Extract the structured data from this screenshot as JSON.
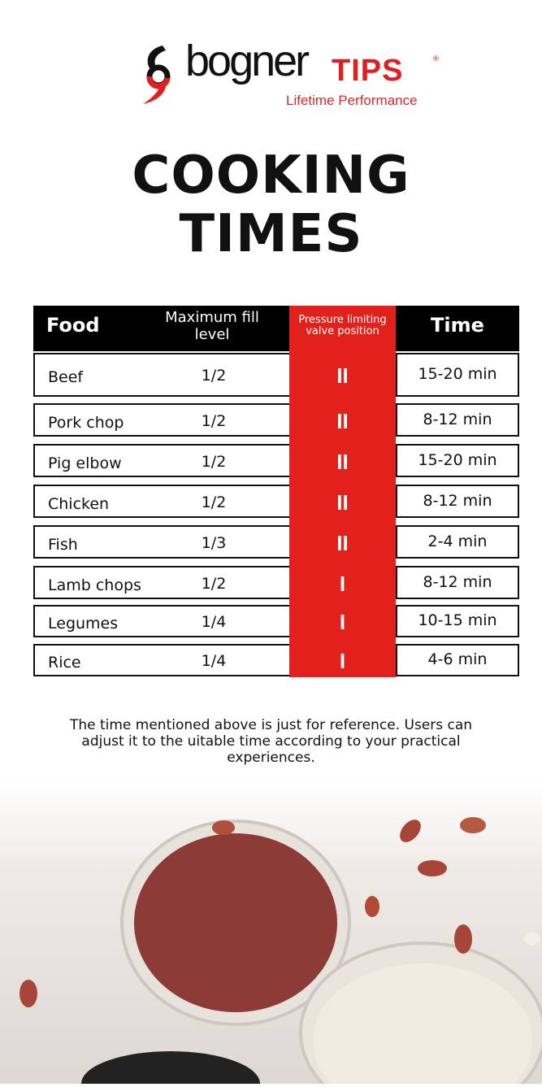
{
  "logo": {
    "brand": "bogner",
    "accent": "TIPS",
    "tagline": "Lifetime Performance",
    "registered": "®"
  },
  "title": {
    "line1": "COOKING",
    "line2": "TIMES"
  },
  "table": {
    "headers": {
      "food": "Food",
      "fill": "Maximum fill level",
      "valve": "Pressure limiting valve position",
      "time": "Time"
    },
    "rows": [
      {
        "food": "Beef",
        "fill": "1/2",
        "valve": "II",
        "time": "15-20 min"
      },
      {
        "food": "Pork chop",
        "fill": "1/2",
        "valve": "II",
        "time": "8-12 min"
      },
      {
        "food": "Pig elbow",
        "fill": "1/2",
        "valve": "II",
        "time": "15-20 min"
      },
      {
        "food": "Chicken",
        "fill": "1/2",
        "valve": "II",
        "time": "8-12 min"
      },
      {
        "food": "Fish",
        "fill": "1/3",
        "valve": "II",
        "time": "2-4 min"
      },
      {
        "food": "Lamb chops",
        "fill": "1/2",
        "valve": "I",
        "time": "8-12 min"
      },
      {
        "food": "Legumes",
        "fill": "1/4",
        "valve": "I",
        "time": "10-15 min"
      },
      {
        "food": "Rice",
        "fill": "1/4",
        "valve": "I",
        "time": "4-6 min"
      }
    ]
  },
  "note": "The time mentioned above is just for reference. Users can adjust it to the  uitable time according to your practical experiences.",
  "colors": {
    "accent": "#e2211c",
    "header": "#000000"
  }
}
